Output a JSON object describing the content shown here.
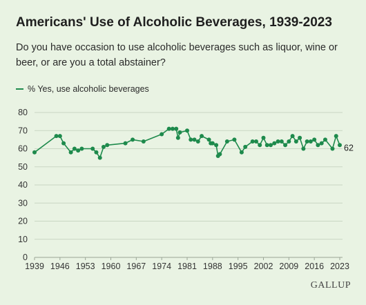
{
  "header": {
    "title": "Americans' Use of Alcoholic Beverages, 1939-2023",
    "subtitle": "Do you have occasion to use alcoholic beverages such as liquor, wine or beer, or are you a total abstainer?"
  },
  "legend": {
    "label": "% Yes, use alcoholic beverages"
  },
  "branding": {
    "logo": "GALLUP"
  },
  "colors": {
    "series": "#1e8a4c",
    "grid": "#c9d6c3"
  },
  "chart_data": {
    "type": "line",
    "title": "Americans' Use of Alcoholic Beverages, 1939-2023",
    "ylim": [
      0,
      80
    ],
    "yticks": [
      0,
      10,
      20,
      30,
      40,
      50,
      60,
      70,
      80
    ],
    "xlim": [
      1939,
      2023
    ],
    "xticks": [
      1939,
      1946,
      1953,
      1960,
      1967,
      1974,
      1981,
      1988,
      1995,
      2002,
      2009,
      2016,
      2023
    ],
    "grid": true,
    "legend_position": "top-left",
    "end_label": "62",
    "series": [
      {
        "name": "% Yes, use alcoholic beverages",
        "points": [
          [
            1939,
            58
          ],
          [
            1945,
            67
          ],
          [
            1946,
            67
          ],
          [
            1947,
            63
          ],
          [
            1949,
            58
          ],
          [
            1950,
            60
          ],
          [
            1951,
            59
          ],
          [
            1952,
            60
          ],
          [
            1955,
            60
          ],
          [
            1956,
            58
          ],
          [
            1957,
            55
          ],
          [
            1958,
            61
          ],
          [
            1959,
            62
          ],
          [
            1964,
            63
          ],
          [
            1966,
            65
          ],
          [
            1969,
            64
          ],
          [
            1974,
            68
          ],
          [
            1976,
            71
          ],
          [
            1977,
            71
          ],
          [
            1978,
            71
          ],
          [
            1978.5,
            66
          ],
          [
            1979,
            69
          ],
          [
            1981,
            70
          ],
          [
            1982,
            65
          ],
          [
            1983,
            65
          ],
          [
            1984,
            64
          ],
          [
            1985,
            67
          ],
          [
            1987,
            65
          ],
          [
            1987.5,
            63
          ],
          [
            1988,
            63
          ],
          [
            1989,
            62
          ],
          [
            1989.5,
            56
          ],
          [
            1990,
            57
          ],
          [
            1992,
            64
          ],
          [
            1994,
            65
          ],
          [
            1996,
            58
          ],
          [
            1997,
            61
          ],
          [
            1999,
            64
          ],
          [
            2000,
            64
          ],
          [
            2001,
            62
          ],
          [
            2002,
            66
          ],
          [
            2003,
            62
          ],
          [
            2004,
            62
          ],
          [
            2005,
            63
          ],
          [
            2006,
            64
          ],
          [
            2007,
            64
          ],
          [
            2008,
            62
          ],
          [
            2009,
            64
          ],
          [
            2010,
            67
          ],
          [
            2011,
            64
          ],
          [
            2012,
            66
          ],
          [
            2013,
            60
          ],
          [
            2014,
            64
          ],
          [
            2015,
            64
          ],
          [
            2016,
            65
          ],
          [
            2017,
            62
          ],
          [
            2018,
            63
          ],
          [
            2019,
            65
          ],
          [
            2021,
            60
          ],
          [
            2022,
            67
          ],
          [
            2023,
            62
          ]
        ]
      }
    ]
  }
}
